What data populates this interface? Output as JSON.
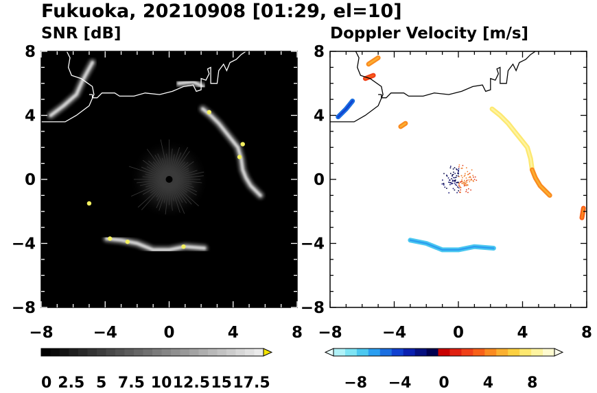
{
  "title": "Fukuoka, 20210908 [01:29, el=10]",
  "chart_data": [
    {
      "type": "heatmap",
      "title": "SNR [dB]",
      "xlim": [
        -8,
        8
      ],
      "ylim": [
        -8,
        8
      ],
      "xticks": [
        "−8",
        "−4",
        "0",
        "4",
        "8"
      ],
      "yticks": [
        "8",
        "4",
        "0",
        "−4",
        "−8"
      ],
      "background": "#000000",
      "colormap": "grayscale-to-yellow",
      "colorbar": {
        "labels": [
          "0",
          "2.5",
          "5",
          "7.5",
          "10",
          "12.5",
          "15",
          "17.5"
        ],
        "min": 0,
        "max": 18.5,
        "extend": "max"
      },
      "echo_bands": [
        {
          "name": "east-arc",
          "points": [
            [
              2.1,
              4.4
            ],
            [
              2.6,
              4.0
            ],
            [
              3.1,
              3.5
            ],
            [
              3.5,
              3.0
            ],
            [
              3.9,
              2.5
            ],
            [
              4.3,
              2.0
            ],
            [
              4.5,
              1.3
            ],
            [
              4.6,
              0.6
            ],
            [
              4.8,
              0.1
            ],
            [
              5.1,
              -0.4
            ],
            [
              5.7,
              -1.0
            ]
          ]
        },
        {
          "name": "south-arc",
          "points": [
            [
              -3.9,
              -3.7
            ],
            [
              -3.0,
              -3.8
            ],
            [
              -2.0,
              -4.0
            ],
            [
              -1.0,
              -4.4
            ],
            [
              0.0,
              -4.4
            ],
            [
              1.0,
              -4.2
            ],
            [
              2.2,
              -4.3
            ]
          ]
        },
        {
          "name": "northwest-arc",
          "points": [
            [
              -7.4,
              4.0
            ],
            [
              -6.6,
              4.6
            ],
            [
              -5.8,
              5.3
            ],
            [
              -5.4,
              6.2
            ],
            [
              -4.8,
              7.3
            ]
          ]
        },
        {
          "name": "north-coast",
          "points": [
            [
              0.6,
              6.0
            ],
            [
              1.5,
              6.1
            ],
            [
              2.1,
              5.8
            ]
          ]
        }
      ],
      "hotspots": [
        [
          2.5,
          4.2
        ],
        [
          4.6,
          2.2
        ],
        [
          4.4,
          1.4
        ],
        [
          -3.7,
          -3.7
        ],
        [
          -2.6,
          -3.9
        ],
        [
          0.9,
          -4.2
        ],
        [
          -5.0,
          -1.5
        ]
      ]
    },
    {
      "type": "heatmap",
      "title": "Doppler Velocity [m/s]",
      "xlim": [
        -8,
        8
      ],
      "ylim": [
        -8,
        8
      ],
      "xticks": [
        "−8",
        "−4",
        "0",
        "4",
        "8"
      ],
      "yticks": [
        "8",
        "4",
        "0",
        "−4",
        "−8"
      ],
      "background": "#ffffff",
      "colormap": "cyan-blue-red-yellow",
      "colorbar": {
        "labels": [
          "−8",
          "−4",
          "0",
          "4",
          "8"
        ],
        "min": -10,
        "max": 10,
        "extend": "both"
      },
      "echo_bands": [
        {
          "name": "east-arc",
          "velocity": 7,
          "points": [
            [
              2.1,
              4.4
            ],
            [
              2.6,
              4.0
            ],
            [
              3.1,
              3.5
            ],
            [
              3.5,
              3.0
            ],
            [
              3.9,
              2.5
            ],
            [
              4.3,
              2.0
            ],
            [
              4.5,
              1.3
            ],
            [
              4.6,
              0.6
            ]
          ]
        },
        {
          "name": "east-arc-lower",
          "velocity": 4,
          "points": [
            [
              4.6,
              0.6
            ],
            [
              4.8,
              0.1
            ],
            [
              5.1,
              -0.4
            ],
            [
              5.7,
              -1.0
            ]
          ]
        },
        {
          "name": "south-arc",
          "velocity": -6,
          "points": [
            [
              -3.0,
              -3.8
            ],
            [
              -2.0,
              -4.0
            ],
            [
              -1.0,
              -4.4
            ],
            [
              0.0,
              -4.4
            ],
            [
              1.0,
              -4.2
            ],
            [
              2.2,
              -4.3
            ]
          ]
        },
        {
          "name": "northwest-arc",
          "velocity": -4,
          "points": [
            [
              -7.5,
              3.9
            ],
            [
              -7.0,
              4.4
            ],
            [
              -6.6,
              4.9
            ]
          ]
        },
        {
          "name": "north-coast-red",
          "velocity": 2,
          "points": [
            [
              -5.8,
              6.3
            ],
            [
              -5.3,
              6.5
            ]
          ]
        },
        {
          "name": "north-coast-orange",
          "velocity": 4,
          "points": [
            [
              -5.6,
              7.2
            ],
            [
              -5.0,
              7.6
            ]
          ]
        },
        {
          "name": "west-patch",
          "velocity": 4,
          "points": [
            [
              -3.6,
              3.3
            ],
            [
              -3.3,
              3.5
            ]
          ]
        },
        {
          "name": "far-east",
          "velocity": 3,
          "points": [
            [
              7.8,
              -1.8
            ],
            [
              7.7,
              -2.4
            ]
          ]
        }
      ]
    }
  ]
}
